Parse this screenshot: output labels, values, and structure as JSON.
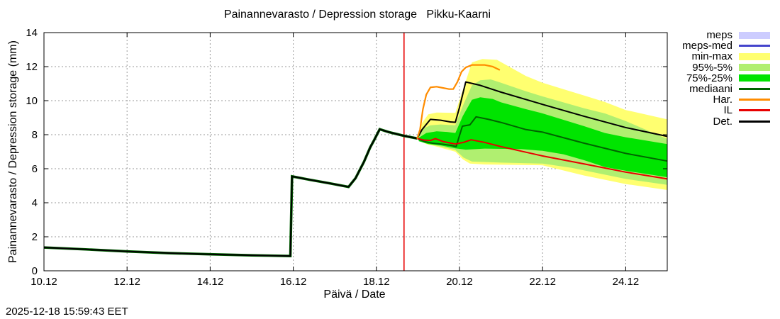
{
  "title": "Painannevarasto / Depression storage   Pikku-Kaarni",
  "timestamp": "2025-12-18 15:59:43 EET",
  "x_axis_label": "Päivä / Date",
  "y_axis_label": "Painannevarasto / Depression storage (mm)",
  "legend": [
    {
      "label": "meps",
      "type": "band",
      "color": "#ccccff"
    },
    {
      "label": "meps-med",
      "type": "line",
      "color": "#4444cc"
    },
    {
      "label": "min-max",
      "type": "band",
      "color": "#ffff70"
    },
    {
      "label": "95%-5%",
      "type": "band",
      "color": "#b0ef70"
    },
    {
      "label": "75%-25%",
      "type": "band",
      "color": "#00e400"
    },
    {
      "label": "mediaani",
      "type": "line",
      "color": "#006400"
    },
    {
      "label": "Har.",
      "type": "line",
      "color": "#ff8c00"
    },
    {
      "label": "IL",
      "type": "line",
      "color": "#e80000"
    },
    {
      "label": "Det.",
      "type": "line",
      "color": "#000000"
    }
  ],
  "chart_data": {
    "type": "line",
    "title": "Painannevarasto / Depression storage   Pikku-Kaarni",
    "station": "Pikku-Kaarni",
    "xlabel": "Päivä / Date",
    "ylabel": "Painannevarasto / Depression storage (mm)",
    "x_unit": "date in December (day number)",
    "xlim": [
      10,
      25
    ],
    "ylim": [
      0,
      14
    ],
    "x_tick_days": [
      10,
      12,
      14,
      16,
      18,
      20,
      22,
      24
    ],
    "x_tick_labels": [
      "10.12",
      "12.12",
      "14.12",
      "16.12",
      "18.12",
      "20.12",
      "22.12",
      "24.12"
    ],
    "x_grid_days": [
      12,
      14,
      16,
      18,
      20,
      22,
      24
    ],
    "y_ticks": [
      0,
      2,
      4,
      6,
      8,
      10,
      12,
      14
    ],
    "y_grid": [
      2,
      4,
      6,
      8,
      10,
      12
    ],
    "grid": true,
    "legend_position": "outside-right",
    "forecast_marker": {
      "x": 18.665,
      "color": "#e80000"
    },
    "bands": [
      {
        "name": "min-max",
        "color": "#ffff70",
        "upper": [
          [
            18.98,
            7.8
          ],
          [
            19.1,
            8.7
          ],
          [
            19.25,
            9.2
          ],
          [
            19.45,
            9.3
          ],
          [
            19.9,
            9.28
          ],
          [
            20.05,
            10.4
          ],
          [
            20.3,
            12.25
          ],
          [
            20.55,
            12.45
          ],
          [
            20.9,
            12.4
          ],
          [
            21.6,
            11.45
          ],
          [
            22,
            11.05
          ],
          [
            23,
            10.3
          ],
          [
            23.5,
            9.92
          ],
          [
            24,
            9.45
          ],
          [
            25,
            8.9
          ]
        ],
        "lower": [
          [
            18.98,
            7.74
          ],
          [
            19.2,
            7.45
          ],
          [
            19.45,
            7.3
          ],
          [
            19.9,
            7.0
          ],
          [
            20.08,
            6.55
          ],
          [
            20.25,
            6.3
          ],
          [
            20.6,
            6.25
          ],
          [
            21.5,
            6.22
          ],
          [
            22,
            6.2
          ],
          [
            23,
            5.6
          ],
          [
            24,
            5.1
          ],
          [
            25,
            4.75
          ]
        ]
      },
      {
        "name": "95%-5%",
        "color": "#b0ef70",
        "upper": [
          [
            18.98,
            7.78
          ],
          [
            19.12,
            8.35
          ],
          [
            19.3,
            8.55
          ],
          [
            19.55,
            8.6
          ],
          [
            19.9,
            8.55
          ],
          [
            20.08,
            9.7
          ],
          [
            20.3,
            10.9
          ],
          [
            20.5,
            11.2
          ],
          [
            20.75,
            11.25
          ],
          [
            21,
            11.05
          ],
          [
            21.6,
            10.55
          ],
          [
            22,
            10.25
          ],
          [
            23,
            9.55
          ],
          [
            23.5,
            9.25
          ],
          [
            24,
            8.8
          ],
          [
            25,
            7.75
          ]
        ],
        "lower": [
          [
            18.98,
            7.74
          ],
          [
            19.25,
            7.48
          ],
          [
            19.55,
            7.3
          ],
          [
            19.9,
            7.1
          ],
          [
            20.1,
            6.65
          ],
          [
            20.3,
            6.42
          ],
          [
            21,
            6.36
          ],
          [
            22,
            6.3
          ],
          [
            22.7,
            6.05
          ],
          [
            23,
            5.9
          ],
          [
            24,
            5.4
          ],
          [
            25,
            5.05
          ]
        ]
      },
      {
        "name": "75%-25%",
        "color": "#00e400",
        "upper": [
          [
            19.02,
            7.82
          ],
          [
            19.2,
            8.1
          ],
          [
            19.45,
            8.2
          ],
          [
            19.7,
            8.16
          ],
          [
            19.9,
            8.1
          ],
          [
            20.08,
            9.1
          ],
          [
            20.3,
            10.05
          ],
          [
            20.5,
            10.2
          ],
          [
            20.8,
            10.1
          ],
          [
            21,
            9.9
          ],
          [
            21.6,
            9.5
          ],
          [
            22,
            9.25
          ],
          [
            23,
            8.5
          ],
          [
            23.5,
            8.1
          ],
          [
            24,
            7.85
          ],
          [
            25,
            7.45
          ]
        ],
        "lower": [
          [
            19.02,
            7.62
          ],
          [
            19.25,
            7.45
          ],
          [
            19.55,
            7.37
          ],
          [
            19.9,
            7.2
          ],
          [
            20.15,
            7.12
          ],
          [
            20.6,
            7.18
          ],
          [
            21.5,
            7.15
          ],
          [
            22,
            7.05
          ],
          [
            22.5,
            6.85
          ],
          [
            23,
            6.5
          ],
          [
            23.5,
            6.1
          ],
          [
            24,
            5.88
          ],
          [
            25,
            5.5
          ]
        ]
      }
    ],
    "lines": [
      {
        "name": "history",
        "color": "#000000",
        "width": 2,
        "underlay": "#006400",
        "points": [
          [
            10,
            1.37
          ],
          [
            11,
            1.26
          ],
          [
            12,
            1.14
          ],
          [
            13,
            1.04
          ],
          [
            14,
            0.97
          ],
          [
            15,
            0.91
          ],
          [
            15.93,
            0.87
          ],
          [
            15.97,
            5.55
          ],
          [
            16.4,
            5.35
          ],
          [
            16.9,
            5.13
          ],
          [
            17.33,
            4.93
          ],
          [
            17.5,
            5.45
          ],
          [
            17.7,
            6.4
          ],
          [
            17.85,
            7.25
          ],
          [
            17.95,
            7.7
          ],
          [
            18.08,
            8.32
          ],
          [
            18.3,
            8.15
          ],
          [
            18.67,
            7.93
          ],
          [
            18.98,
            7.78
          ]
        ]
      },
      {
        "name": "mediaani",
        "color": "#006400",
        "width": 2,
        "points": [
          [
            18.98,
            7.78
          ],
          [
            19.15,
            7.6
          ],
          [
            19.35,
            7.5
          ],
          [
            19.6,
            7.44
          ],
          [
            19.8,
            7.37
          ],
          [
            19.92,
            7.3
          ],
          [
            20.0,
            7.95
          ],
          [
            20.07,
            8.5
          ],
          [
            20.25,
            8.58
          ],
          [
            20.4,
            9.05
          ],
          [
            20.7,
            8.9
          ],
          [
            21,
            8.72
          ],
          [
            21.6,
            8.3
          ],
          [
            22,
            8.15
          ],
          [
            23,
            7.5
          ],
          [
            24,
            6.9
          ],
          [
            25,
            6.45
          ]
        ]
      },
      {
        "name": "IL",
        "color": "#e80000",
        "width": 2,
        "points": [
          [
            18.98,
            7.78
          ],
          [
            19.15,
            7.68
          ],
          [
            19.3,
            7.66
          ],
          [
            19.42,
            7.77
          ],
          [
            19.6,
            7.6
          ],
          [
            19.9,
            7.45
          ],
          [
            20.1,
            7.55
          ],
          [
            20.28,
            7.7
          ],
          [
            20.6,
            7.55
          ],
          [
            21,
            7.3
          ],
          [
            22,
            6.75
          ],
          [
            23,
            6.28
          ],
          [
            24,
            5.8
          ],
          [
            25,
            5.4
          ]
        ]
      },
      {
        "name": "Det.",
        "color": "#000000",
        "width": 2,
        "points": [
          [
            18.98,
            7.78
          ],
          [
            19.1,
            8.3
          ],
          [
            19.3,
            8.9
          ],
          [
            19.55,
            8.85
          ],
          [
            19.78,
            8.75
          ],
          [
            19.9,
            8.73
          ],
          [
            20.0,
            9.6
          ],
          [
            20.15,
            11.1
          ],
          [
            20.5,
            10.9
          ],
          [
            21,
            10.5
          ],
          [
            22,
            9.78
          ],
          [
            23,
            9.08
          ],
          [
            24,
            8.42
          ],
          [
            25,
            7.9
          ]
        ]
      },
      {
        "name": "Har.",
        "color": "#ff8c00",
        "width": 2.2,
        "points": [
          [
            18.98,
            7.76
          ],
          [
            19.05,
            8.3
          ],
          [
            19.12,
            9.5
          ],
          [
            19.2,
            10.35
          ],
          [
            19.3,
            10.78
          ],
          [
            19.45,
            10.82
          ],
          [
            19.6,
            10.75
          ],
          [
            19.75,
            10.68
          ],
          [
            19.85,
            10.68
          ],
          [
            19.95,
            11.1
          ],
          [
            20.05,
            11.7
          ],
          [
            20.15,
            11.95
          ],
          [
            20.3,
            12.1
          ],
          [
            20.6,
            12.1
          ],
          [
            20.8,
            12.0
          ],
          [
            20.97,
            11.8
          ]
        ]
      }
    ]
  }
}
